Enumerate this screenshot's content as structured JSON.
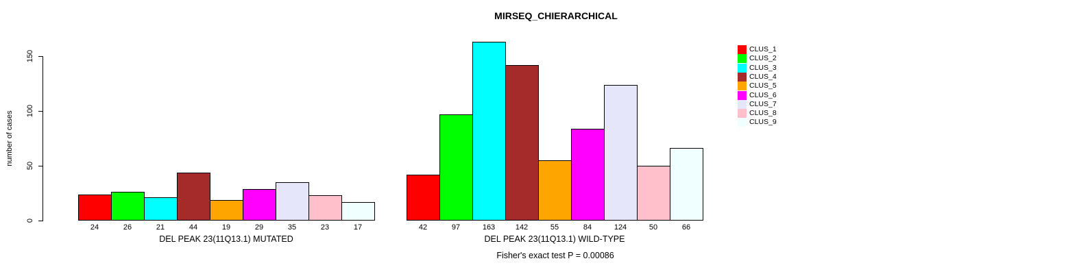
{
  "title": "MIRSEQ_CHIERARCHICAL",
  "footer": "Fisher's exact test P = 0.00086",
  "y_axis": {
    "label": "number of cases",
    "ticks": [
      0,
      50,
      100,
      150
    ]
  },
  "legend": {
    "position": "right",
    "entries": [
      {
        "label": "CLUS_1",
        "color": "#FF0000"
      },
      {
        "label": "CLUS_2",
        "color": "#00FF00"
      },
      {
        "label": "CLUS_3",
        "color": "#00FFFF"
      },
      {
        "label": "CLUS_4",
        "color": "#A52A2A"
      },
      {
        "label": "CLUS_5",
        "color": "#FFA500"
      },
      {
        "label": "CLUS_6",
        "color": "#FF00FF"
      },
      {
        "label": "CLUS_7",
        "color": "#E6E6FA"
      },
      {
        "label": "CLUS_8",
        "color": "#FFC0CB"
      },
      {
        "label": "CLUS_9",
        "color": "#F0FFFF"
      }
    ]
  },
  "chart_data": [
    {
      "type": "bar",
      "xlabel": "DEL PEAK 23(11Q13.1) MUTATED",
      "ylabel": "number of cases",
      "categories": [
        "CLUS_1",
        "CLUS_2",
        "CLUS_3",
        "CLUS_4",
        "CLUS_5",
        "CLUS_6",
        "CLUS_7",
        "CLUS_8",
        "CLUS_9"
      ],
      "values": [
        24,
        26,
        21,
        44,
        19,
        29,
        35,
        23,
        17
      ],
      "colors": [
        "#FF0000",
        "#00FF00",
        "#00FFFF",
        "#A52A2A",
        "#FFA500",
        "#FF00FF",
        "#E6E6FA",
        "#FFC0CB",
        "#F0FFFF"
      ],
      "ylim": [
        0,
        150
      ],
      "grid": false,
      "legend_position": "right"
    },
    {
      "type": "bar",
      "xlabel": "DEL PEAK 23(11Q13.1) WILD-TYPE",
      "ylabel": "number of cases",
      "categories": [
        "CLUS_1",
        "CLUS_2",
        "CLUS_3",
        "CLUS_4",
        "CLUS_5",
        "CLUS_6",
        "CLUS_7",
        "CLUS_8",
        "CLUS_9"
      ],
      "values": [
        42,
        97,
        163,
        142,
        55,
        84,
        124,
        50,
        66
      ],
      "colors": [
        "#FF0000",
        "#00FF00",
        "#00FFFF",
        "#A52A2A",
        "#FFA500",
        "#FF00FF",
        "#E6E6FA",
        "#FFC0CB",
        "#F0FFFF"
      ],
      "ylim": [
        0,
        163
      ],
      "grid": false,
      "legend_position": "right"
    }
  ]
}
